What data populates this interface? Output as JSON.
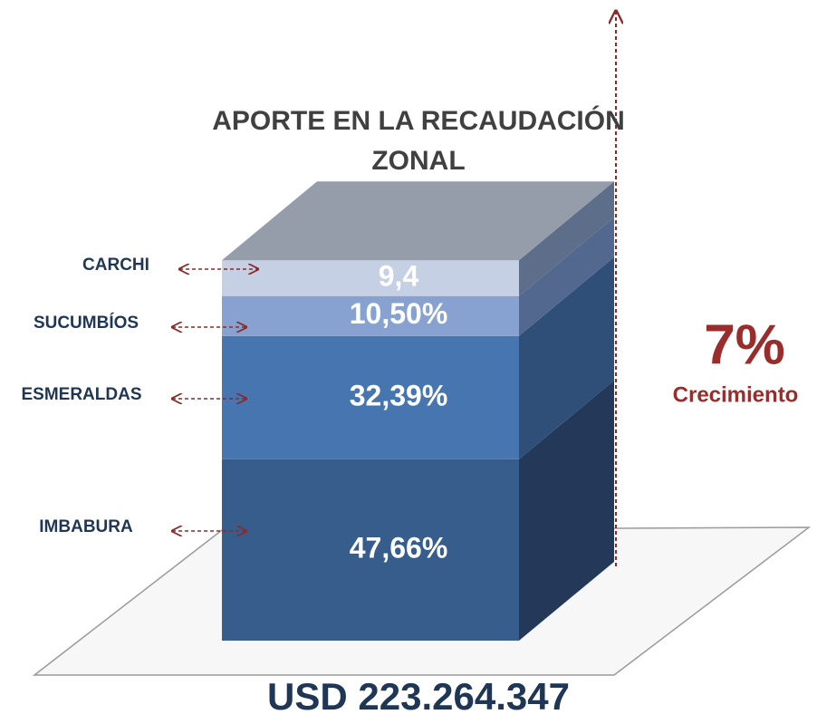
{
  "chart_data": {
    "type": "bar",
    "title": "APORTE EN LA RECAUDACIÓN ZONAL",
    "categories": [
      "IMBABURA",
      "ESMERALDAS",
      "SUCUMBÍOS",
      "CARCHI"
    ],
    "values": [
      47.66,
      32.39,
      10.5,
      9.4
    ],
    "value_labels": [
      "47,66%",
      "32,39%",
      "10,50%",
      "9,4"
    ],
    "colors": [
      "#365d8c",
      "#4675b0",
      "#87a1d0",
      "#c5d0e4"
    ],
    "side_colors": [
      "#24395a",
      "#2f4e78",
      "#52688f",
      "#5d6e8a"
    ],
    "total_label": "USD 223.264.347",
    "growth_value": "7%",
    "growth_label": "Crecimiento"
  }
}
